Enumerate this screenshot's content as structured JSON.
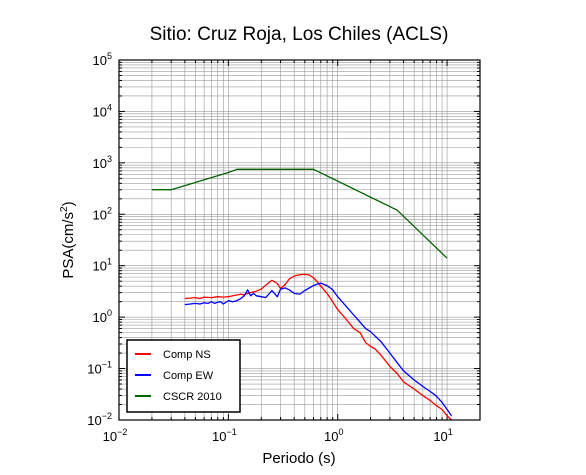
{
  "chart_data": {
    "type": "line",
    "title": "Sitio: Cruz Roja, Los Chiles (ACLS)",
    "xlabel": "Periodo (s)",
    "ylabel": "PSA(cm/s2)",
    "ylabel_base": "PSA(cm/s",
    "ylabel_sup": "2",
    "ylabel_tail": ")",
    "x_scale": "log",
    "y_scale": "log",
    "xlim": [
      0.01,
      20
    ],
    "ylim": [
      0.01,
      100000
    ],
    "grid": true,
    "legend_position": "bottom-left",
    "x_ticks": [
      {
        "base": "10",
        "exp": "−2",
        "value": 0.01
      },
      {
        "base": "10",
        "exp": "−1",
        "value": 0.1
      },
      {
        "base": "10",
        "exp": "0",
        "value": 1
      },
      {
        "base": "10",
        "exp": "1",
        "value": 10
      }
    ],
    "y_ticks": [
      {
        "base": "10",
        "exp": "−2",
        "value": 0.01
      },
      {
        "base": "10",
        "exp": "−1",
        "value": 0.1
      },
      {
        "base": "10",
        "exp": "0",
        "value": 1
      },
      {
        "base": "10",
        "exp": "1",
        "value": 10
      },
      {
        "base": "10",
        "exp": "2",
        "value": 100
      },
      {
        "base": "10",
        "exp": "3",
        "value": 1000
      },
      {
        "base": "10",
        "exp": "4",
        "value": 10000
      },
      {
        "base": "10",
        "exp": "5",
        "value": 100000
      }
    ],
    "series": [
      {
        "name": "Comp NS",
        "color": "#ff0000",
        "x": [
          0.04,
          0.045,
          0.05,
          0.055,
          0.06,
          0.07,
          0.08,
          0.09,
          0.1,
          0.11,
          0.12,
          0.13,
          0.14,
          0.15,
          0.16,
          0.17,
          0.18,
          0.2,
          0.22,
          0.25,
          0.28,
          0.3,
          0.33,
          0.36,
          0.4,
          0.45,
          0.5,
          0.55,
          0.6,
          0.65,
          0.7,
          0.8,
          0.9,
          1.0,
          1.2,
          1.4,
          1.6,
          1.8,
          2.0,
          2.2,
          2.5,
          3.0,
          3.5,
          4.0,
          5.0,
          6.0,
          7.0,
          8.0,
          9.0,
          10.0,
          11.0
        ],
        "y": [
          2.3,
          2.35,
          2.4,
          2.3,
          2.45,
          2.4,
          2.5,
          2.45,
          2.5,
          2.6,
          2.7,
          2.8,
          2.7,
          2.9,
          3.0,
          3.1,
          3.2,
          3.5,
          4.2,
          5.2,
          4.5,
          3.6,
          4.3,
          5.5,
          6.3,
          6.7,
          6.8,
          6.6,
          5.8,
          4.9,
          4.0,
          2.9,
          2.0,
          1.4,
          0.9,
          0.6,
          0.5,
          0.32,
          0.27,
          0.24,
          0.18,
          0.11,
          0.08,
          0.055,
          0.04,
          0.03,
          0.024,
          0.019,
          0.016,
          0.012,
          0.01
        ]
      },
      {
        "name": "Comp EW",
        "color": "#0000ff",
        "x": [
          0.04,
          0.045,
          0.05,
          0.055,
          0.06,
          0.065,
          0.07,
          0.075,
          0.08,
          0.085,
          0.09,
          0.1,
          0.11,
          0.12,
          0.13,
          0.14,
          0.15,
          0.16,
          0.17,
          0.18,
          0.2,
          0.22,
          0.25,
          0.28,
          0.3,
          0.33,
          0.36,
          0.4,
          0.45,
          0.5,
          0.55,
          0.6,
          0.65,
          0.7,
          0.8,
          0.9,
          1.0,
          1.2,
          1.4,
          1.6,
          1.8,
          2.0,
          2.5,
          3.0,
          3.5,
          4.0,
          5.0,
          6.0,
          7.0,
          8.0,
          9.0,
          10.0,
          11.0
        ],
        "y": [
          1.75,
          1.8,
          1.85,
          1.8,
          1.9,
          1.85,
          2.0,
          1.85,
          1.95,
          2.0,
          1.8,
          2.1,
          2.0,
          2.1,
          2.3,
          2.6,
          3.4,
          2.6,
          2.9,
          2.6,
          2.5,
          2.4,
          3.3,
          2.5,
          3.5,
          3.7,
          3.4,
          2.9,
          2.8,
          3.3,
          3.7,
          4.1,
          4.4,
          4.6,
          4.1,
          3.4,
          2.5,
          1.6,
          1.1,
          0.8,
          0.6,
          0.52,
          0.33,
          0.2,
          0.13,
          0.09,
          0.06,
          0.045,
          0.036,
          0.029,
          0.022,
          0.016,
          0.012
        ]
      },
      {
        "name": "CSCR 2010",
        "color": "#006400",
        "x": [
          0.02,
          0.03,
          0.1,
          0.12,
          0.5,
          0.6,
          3.5,
          10.0
        ],
        "y": [
          300,
          300,
          650,
          750,
          750,
          750,
          120,
          14
        ]
      }
    ]
  }
}
